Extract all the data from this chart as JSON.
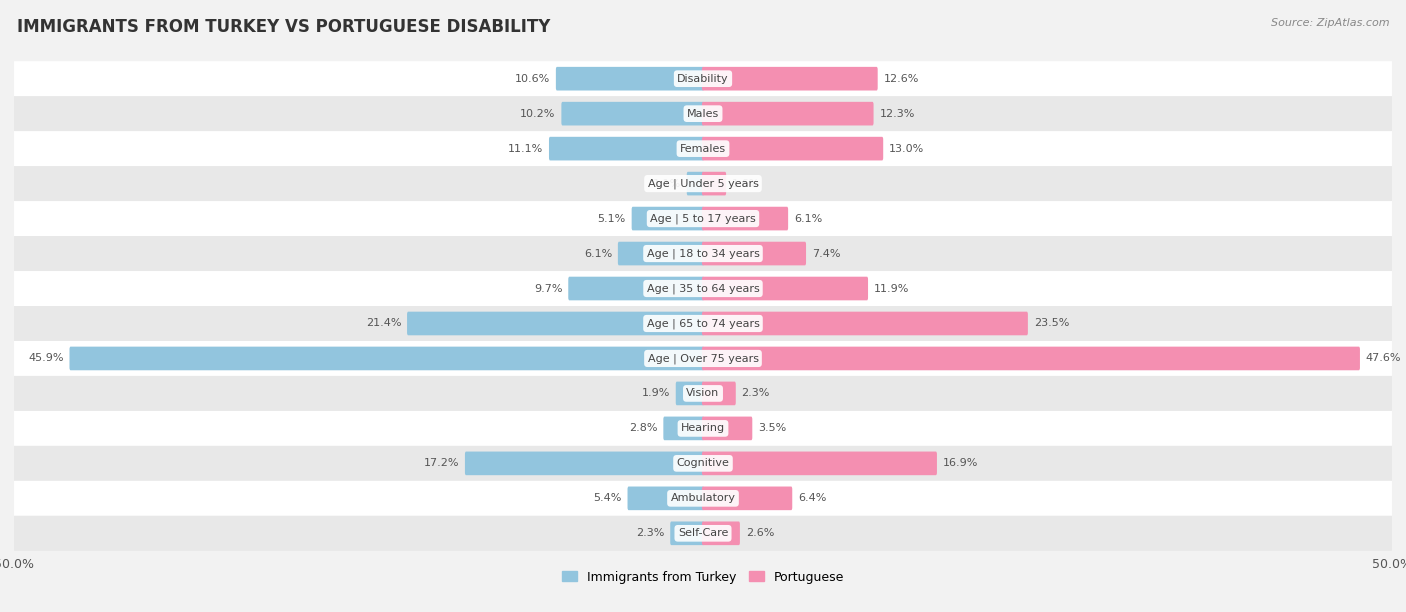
{
  "title": "IMMIGRANTS FROM TURKEY VS PORTUGUESE DISABILITY",
  "source": "Source: ZipAtlas.com",
  "categories": [
    "Disability",
    "Males",
    "Females",
    "Age | Under 5 years",
    "Age | 5 to 17 years",
    "Age | 18 to 34 years",
    "Age | 35 to 64 years",
    "Age | 65 to 74 years",
    "Age | Over 75 years",
    "Vision",
    "Hearing",
    "Cognitive",
    "Ambulatory",
    "Self-Care"
  ],
  "left_values": [
    10.6,
    10.2,
    11.1,
    1.1,
    5.1,
    6.1,
    9.7,
    21.4,
    45.9,
    1.9,
    2.8,
    17.2,
    5.4,
    2.3
  ],
  "right_values": [
    12.6,
    12.3,
    13.0,
    1.6,
    6.1,
    7.4,
    11.9,
    23.5,
    47.6,
    2.3,
    3.5,
    16.9,
    6.4,
    2.6
  ],
  "left_color": "#92c5de",
  "right_color": "#f48fb1",
  "left_label": "Immigrants from Turkey",
  "right_label": "Portuguese",
  "axis_max": 50.0,
  "bg_color": "#f2f2f2",
  "row_color_even": "#ffffff",
  "row_color_odd": "#e8e8e8",
  "title_fontsize": 12,
  "source_fontsize": 8,
  "bar_label_fontsize": 8,
  "cat_label_fontsize": 8,
  "tick_fontsize": 9
}
